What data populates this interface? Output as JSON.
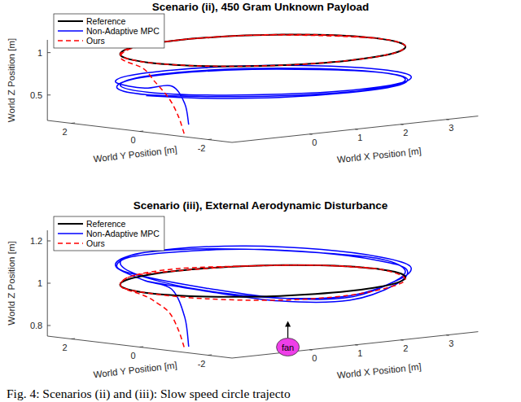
{
  "chart_data": [
    {
      "type": "line3d",
      "title": "Scenario (ii), 450 Gram Unknown Payload",
      "x_label": "World X Position [m]",
      "y_label": "World Y Position [m]",
      "z_label": "World Z Position [m]",
      "xlim": [
        -1.7,
        3.7
      ],
      "ylim": [
        -2.7,
        2.7
      ],
      "zlim": [
        0.2,
        1.15
      ],
      "xticks": [
        0,
        1,
        2,
        3
      ],
      "yticks": [
        -2,
        0,
        2
      ],
      "zticks": [
        0.5,
        1
      ],
      "grid": false,
      "legend": "upper left",
      "series": [
        {
          "name": "Non-Adaptive MPC",
          "color": "#0000ff",
          "line_style": "solid",
          "x": [
            -1.3,
            -1.35,
            -1.45,
            -1.55,
            -1.2,
            -0.25,
            1.05,
            2.35,
            3.3,
            3.65,
            3.3,
            2.35,
            1.05,
            -0.25,
            -1.2,
            -1.5,
            -1.17,
            -0.25,
            1,
            2.25,
            3.17,
            3.5,
            3.17,
            2.25,
            1,
            -0.25,
            -1.17,
            -1.6,
            -1.26,
            -0.33,
            0.95,
            2.23,
            3.16,
            3.5,
            3.16,
            2.23,
            0.95,
            -0.33,
            -1.26,
            -1.6
          ],
          "y": [
            -0.9,
            -0.85,
            -0.6,
            0.05,
            1.35,
            2.3,
            2.65,
            2.3,
            1.35,
            0.05,
            -1.25,
            -2.2,
            -2.55,
            -2.2,
            -1.25,
            0,
            1.25,
            2.17,
            2.5,
            2.17,
            1.25,
            0,
            -1.25,
            -2.17,
            -2.5,
            -2.17,
            -1.25,
            -0.05,
            1.23,
            2.16,
            2.5,
            2.16,
            1.23,
            -0.05,
            -1.33,
            -2.26,
            -2.6,
            -2.26,
            -1.33,
            -0.05
          ],
          "values": [
            0.3,
            0.55,
            0.75,
            0.7,
            0.68,
            0.66,
            0.64,
            0.63,
            0.62,
            0.62,
            0.63,
            0.64,
            0.65,
            0.66,
            0.66,
            0.65,
            0.64,
            0.63,
            0.62,
            0.61,
            0.6,
            0.6,
            0.61,
            0.62,
            0.63,
            0.64,
            0.64,
            0.63,
            0.62,
            0.62,
            0.61,
            0.6,
            0.59,
            0.6,
            0.61,
            0.62,
            0.63,
            0.63,
            0.63,
            0.62
          ]
        },
        {
          "name": "Reference",
          "color": "#000000",
          "line_style": "solid",
          "x": [
            3.5,
            3.41,
            3.17,
            2.77,
            2.25,
            1.65,
            1,
            0.35,
            -0.25,
            -0.77,
            -1.17,
            -1.41,
            -1.5,
            -1.41,
            -1.17,
            -0.77,
            -0.25,
            0.35,
            1,
            1.65,
            2.25,
            2.77,
            3.17,
            3.41,
            3.5
          ],
          "y": [
            0,
            0.65,
            1.25,
            1.77,
            2.17,
            2.41,
            2.5,
            2.41,
            2.17,
            1.77,
            1.25,
            0.65,
            0,
            -0.65,
            -1.25,
            -1.77,
            -2.17,
            -2.41,
            -2.5,
            -2.41,
            -2.17,
            -1.77,
            -1.25,
            -0.65,
            0
          ],
          "values": [
            1,
            1,
            1,
            1,
            1,
            1,
            1,
            1,
            1,
            1,
            1,
            1,
            1,
            1,
            1,
            1,
            1,
            1,
            1,
            1,
            1,
            1,
            1,
            1,
            1
          ]
        },
        {
          "name": "Ours",
          "color": "#ff0000",
          "line_style": "dashed",
          "x": [
            -1.4,
            -1.45,
            -1.5,
            -1.6,
            -1.55,
            -1.17,
            -0.25,
            1,
            2.25,
            3.17,
            3.5,
            3.17,
            2.25,
            1,
            -0.25,
            -1.17,
            -1.5,
            -1.17,
            -0.25,
            1,
            2.25,
            3.17,
            3.5
          ],
          "y": [
            -0.9,
            -0.8,
            -0.6,
            -0.3,
            0.1,
            1.25,
            2.17,
            2.5,
            2.17,
            1.25,
            0,
            -1.25,
            -2.17,
            -2.5,
            -2.17,
            -1.25,
            0,
            1.25,
            2.17,
            2.5,
            2.17,
            1.25,
            0
          ],
          "values": [
            0.2,
            0.4,
            0.6,
            0.8,
            0.93,
            0.97,
            0.99,
            1,
            1,
            1,
            1,
            1,
            1,
            1,
            1,
            1,
            1,
            1,
            1,
            1,
            1,
            0.99,
            1
          ]
        }
      ]
    },
    {
      "type": "line3d",
      "title": "Scenario (iii), External Aerodynamic Disturbance",
      "x_label": "World X Position [m]",
      "y_label": "World Y Position [m]",
      "z_label": "World Z Position [m]",
      "xlim": [
        -1.7,
        3.7
      ],
      "ylim": [
        -2.7,
        2.7
      ],
      "zlim": [
        0.75,
        1.25
      ],
      "xticks": [
        0,
        1,
        2,
        3
      ],
      "yticks": [
        -2,
        0,
        2
      ],
      "zticks": [
        0.8,
        1,
        1.2
      ],
      "grid": false,
      "legend": "upper left",
      "series": [
        {
          "name": "Non-Adaptive MPC",
          "color": "#0000ff",
          "line_style": "solid",
          "x": [
            -1.3,
            -1.35,
            -1.45,
            -1.55,
            -1.2,
            -0.25,
            1.05,
            2.35,
            3.3,
            3.65,
            3.3,
            2.35,
            1.05,
            -0.25,
            -1.2,
            -1.5,
            -1.17,
            -0.25,
            1,
            2.25,
            3.17,
            3.5,
            3.17,
            2.25,
            1,
            -0.25,
            -1.17,
            -1.6,
            -1.26,
            -0.33,
            0.95,
            2.23,
            3.16,
            3.5,
            3.16,
            2.23,
            0.95,
            -0.33,
            -1.26,
            -1.6
          ],
          "y": [
            -0.9,
            -0.85,
            -0.6,
            0.05,
            1.35,
            2.3,
            2.65,
            2.3,
            1.35,
            0.05,
            -1.25,
            -2.2,
            -2.55,
            -2.2,
            -1.25,
            0,
            1.25,
            2.17,
            2.5,
            2.17,
            1.25,
            0,
            -1.25,
            -2.17,
            -2.5,
            -2.17,
            -1.25,
            -0.05,
            1.23,
            2.16,
            2.5,
            2.16,
            1.23,
            -0.05,
            -1.33,
            -2.26,
            -2.6,
            -2.26,
            -1.33,
            -0.05
          ],
          "values": [
            0.76,
            0.9,
            1.03,
            1.06,
            1.09,
            1.1,
            1.1,
            1.09,
            1.07,
            1.05,
            1.04,
            1.02,
            0.98,
            0.99,
            1.03,
            1.07,
            1.1,
            1.11,
            1.1,
            1.08,
            1.06,
            1.05,
            1.03,
            1.01,
            0.97,
            0.99,
            1.04,
            1.08,
            1.09,
            1.1,
            1.09,
            1.08,
            1.06,
            1.04,
            1.03,
            1,
            0.96,
            0.98,
            1.03,
            1.06
          ]
        },
        {
          "name": "Reference",
          "color": "#000000",
          "line_style": "solid",
          "x": [
            3.5,
            3.41,
            3.17,
            2.77,
            2.25,
            1.65,
            1,
            0.35,
            -0.25,
            -0.77,
            -1.17,
            -1.41,
            -1.5,
            -1.41,
            -1.17,
            -0.77,
            -0.25,
            0.35,
            1,
            1.65,
            2.25,
            2.77,
            3.17,
            3.41,
            3.5
          ],
          "y": [
            0,
            0.65,
            1.25,
            1.77,
            2.17,
            2.41,
            2.5,
            2.41,
            2.17,
            1.77,
            1.25,
            0.65,
            0,
            -0.65,
            -1.25,
            -1.77,
            -2.17,
            -2.41,
            -2.5,
            -2.41,
            -2.17,
            -1.77,
            -1.25,
            -0.65,
            0
          ],
          "values": [
            1,
            1,
            1,
            1,
            1,
            1,
            1,
            1,
            1,
            1,
            1,
            1,
            1,
            1,
            1,
            1,
            1,
            1,
            1,
            1,
            1,
            1,
            1,
            1,
            1
          ]
        },
        {
          "name": "Ours",
          "color": "#ff0000",
          "line_style": "dashed",
          "x": [
            -1.4,
            -1.45,
            -1.5,
            -1.6,
            -1.55,
            -1.17,
            -0.25,
            1,
            2.25,
            3.17,
            3.5,
            3.17,
            2.25,
            1,
            -0.25,
            -1.17,
            -1.5,
            -1.17,
            -0.25,
            1,
            2.25,
            3.17,
            3.5
          ],
          "y": [
            -0.9,
            -0.8,
            -0.6,
            -0.3,
            0.1,
            1.25,
            2.17,
            2.5,
            2.17,
            1.25,
            0,
            -1.25,
            -2.17,
            -2.5,
            -2.17,
            -1.25,
            0,
            1.25,
            2.17,
            2.5,
            2.17,
            1.25,
            0
          ],
          "values": [
            0.76,
            0.84,
            0.92,
            0.97,
            0.99,
            1,
            1.01,
            1.01,
            1,
            1,
            1,
            0.99,
            0.99,
            0.98,
            0.98,
            0.99,
            1,
            1,
            1.01,
            1,
            1,
            1,
            1
          ]
        }
      ],
      "annotations": [
        {
          "text": "fan",
          "x": -0.4,
          "y": -2.6,
          "z": 0.77,
          "color": "#ee3ee8"
        }
      ]
    }
  ],
  "caption": "Fig. 4: Scenarios (ii) and (iii): Slow speed circle trajecto"
}
